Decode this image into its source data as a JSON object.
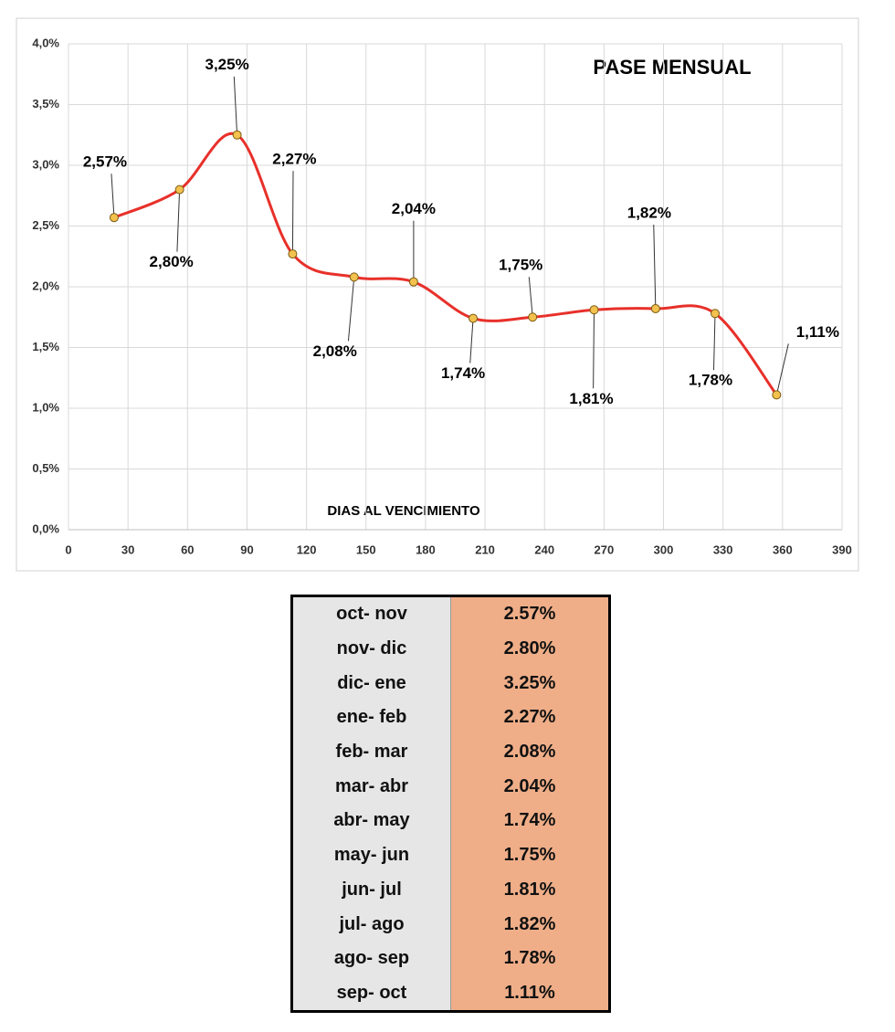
{
  "chart_data": {
    "type": "line",
    "title": "PASE MENSUAL",
    "xlabel": "DIAS AL VENCIMIENTO",
    "x": [
      23,
      56,
      85,
      113,
      144,
      174,
      204,
      234,
      265,
      296,
      326,
      357
    ],
    "series": [
      {
        "name": "Pase mensual",
        "color": "#e8302a",
        "values": [
          2.57,
          2.8,
          3.25,
          2.27,
          2.08,
          2.04,
          1.74,
          1.75,
          1.81,
          1.82,
          1.78,
          1.11
        ],
        "value_labels": [
          "2,57%",
          "2,80%",
          "3,25%",
          "2,27%",
          "2,08%",
          "2,04%",
          "1,74%",
          "1,75%",
          "1,81%",
          "1,82%",
          "1,78%",
          "1,11%"
        ]
      }
    ],
    "marker_color": "#f2c14e",
    "xlim": [
      0,
      390
    ],
    "xticks": [
      0,
      30,
      60,
      90,
      120,
      150,
      180,
      210,
      240,
      270,
      300,
      330,
      360,
      390
    ],
    "ylim": [
      0,
      4
    ],
    "yticks": [
      {
        "value": 0,
        "label": "0,0%"
      },
      {
        "value": 0.5,
        "label": "0,5%"
      },
      {
        "value": 1,
        "label": "1,0%"
      },
      {
        "value": 1.5,
        "label": "1,5%"
      },
      {
        "value": 2,
        "label": "2,0%"
      },
      {
        "value": 2.5,
        "label": "2,5%"
      },
      {
        "value": 3,
        "label": "3,0%"
      },
      {
        "value": 3.5,
        "label": "3,5%"
      },
      {
        "value": 4,
        "label": "4,0%"
      }
    ],
    "grid": true
  },
  "table": {
    "rows": [
      [
        "oct- nov",
        "2.57%"
      ],
      [
        "nov- dic",
        "2.80%"
      ],
      [
        "dic- ene",
        "3.25%"
      ],
      [
        "ene- feb",
        "2.27%"
      ],
      [
        "feb- mar",
        "2.08%"
      ],
      [
        "mar- abr",
        "2.04%"
      ],
      [
        "abr- may",
        "1.74%"
      ],
      [
        "may- jun",
        "1.75%"
      ],
      [
        "jun- jul",
        "1.81%"
      ],
      [
        "jul- ago",
        "1.82%"
      ],
      [
        "ago- sep",
        "1.78%"
      ],
      [
        "sep- oct",
        "1.11%"
      ]
    ]
  }
}
